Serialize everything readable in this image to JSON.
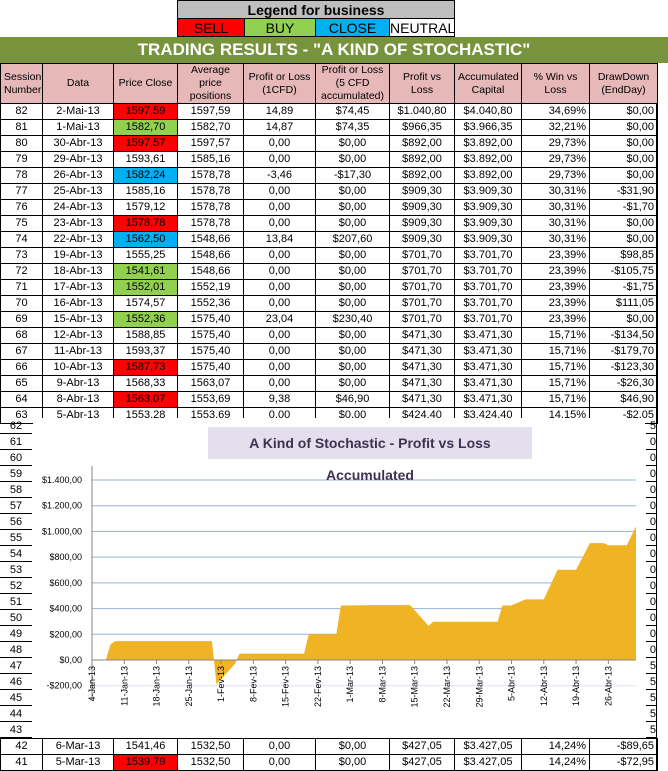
{
  "legend": {
    "title": "Legend for business",
    "items": [
      {
        "label": "SELL",
        "color": "#FF0000"
      },
      {
        "label": "BUY",
        "color": "#92D050"
      },
      {
        "label": "CLOSE",
        "color": "#00B0F0"
      },
      {
        "label": "NEUTRAL",
        "color": "#FFFFFF"
      }
    ]
  },
  "title": "TRADING RESULTS - \"A KIND OF STOCHASTIC\"",
  "headers": [
    "Session Number",
    "Data",
    "Price Close",
    "Average price positions",
    "Profit or Loss (1CFD)",
    "Profit or Loss (5 CFD accumulated)",
    "Profit vs Loss",
    "Accumulated Capital",
    "% Win vs Loss",
    "DrawDown (EndDay)"
  ],
  "rows": [
    [
      "82",
      "2-Mai-13",
      "1597,59",
      "SELL",
      "1597,59",
      "14,89",
      "$74,45",
      "$1.040,80",
      "$4.040,80",
      "34,69%",
      "$0,00"
    ],
    [
      "81",
      "1-Mai-13",
      "1582,70",
      "BUY",
      "1582,70",
      "14,87",
      "$74,35",
      "$966,35",
      "$3.966,35",
      "32,21%",
      "$0,00"
    ],
    [
      "80",
      "30-Abr-13",
      "1597,57",
      "SELL",
      "1597,57",
      "0,00",
      "$0,00",
      "$892,00",
      "$3.892,00",
      "29,73%",
      "$0,00"
    ],
    [
      "79",
      "29-Abr-13",
      "1593,61",
      "NEUTRAL",
      "1585,16",
      "0,00",
      "$0,00",
      "$892,00",
      "$3.892,00",
      "29,73%",
      "$0,00"
    ],
    [
      "78",
      "26-Abr-13",
      "1582,24",
      "CLOSE",
      "1578,78",
      "-3,46",
      "-$17,30",
      "$892,00",
      "$3.892,00",
      "29,73%",
      "$0,00"
    ],
    [
      "77",
      "25-Abr-13",
      "1585,16",
      "NEUTRAL",
      "1578,78",
      "0,00",
      "$0,00",
      "$909,30",
      "$3.909,30",
      "30,31%",
      "-$31,90"
    ],
    [
      "76",
      "24-Abr-13",
      "1579,12",
      "NEUTRAL",
      "1578,78",
      "0,00",
      "$0,00",
      "$909,30",
      "$3.909,30",
      "30,31%",
      "-$1,70"
    ],
    [
      "75",
      "23-Abr-13",
      "1578,78",
      "SELL",
      "1578,78",
      "0,00",
      "$0,00",
      "$909,30",
      "$3.909,30",
      "30,31%",
      "$0,00"
    ],
    [
      "74",
      "22-Abr-13",
      "1562,50",
      "CLOSE",
      "1548,66",
      "13,84",
      "$207,60",
      "$909,30",
      "$3.909,30",
      "30,31%",
      "$0,00"
    ],
    [
      "73",
      "19-Abr-13",
      "1555,25",
      "NEUTRAL",
      "1548,66",
      "0,00",
      "$0,00",
      "$701,70",
      "$3.701,70",
      "23,39%",
      "$98,85"
    ],
    [
      "72",
      "18-Abr-13",
      "1541,61",
      "BUY",
      "1548,66",
      "0,00",
      "$0,00",
      "$701,70",
      "$3.701,70",
      "23,39%",
      "-$105,75"
    ],
    [
      "71",
      "17-Abr-13",
      "1552,01",
      "BUY",
      "1552,19",
      "0,00",
      "$0,00",
      "$701,70",
      "$3.701,70",
      "23,39%",
      "-$1,75"
    ],
    [
      "70",
      "16-Abr-13",
      "1574,57",
      "NEUTRAL",
      "1552,36",
      "0,00",
      "$0,00",
      "$701,70",
      "$3.701,70",
      "23,39%",
      "$111,05"
    ],
    [
      "69",
      "15-Abr-13",
      "1552,36",
      "BUY",
      "1575,40",
      "23,04",
      "$230,40",
      "$701,70",
      "$3.701,70",
      "23,39%",
      "$0,00"
    ],
    [
      "68",
      "12-Abr-13",
      "1588,85",
      "NEUTRAL",
      "1575,40",
      "0,00",
      "$0,00",
      "$471,30",
      "$3.471,30",
      "15,71%",
      "-$134,50"
    ],
    [
      "67",
      "11-Abr-13",
      "1593,37",
      "NEUTRAL",
      "1575,40",
      "0,00",
      "$0,00",
      "$471,30",
      "$3.471,30",
      "15,71%",
      "-$179,70"
    ],
    [
      "66",
      "10-Abr-13",
      "1587,73",
      "SELL",
      "1575,40",
      "0,00",
      "$0,00",
      "$471,30",
      "$3.471,30",
      "15,71%",
      "-$123,30"
    ],
    [
      "65",
      "9-Abr-13",
      "1568,33",
      "NEUTRAL",
      "1563,07",
      "0,00",
      "$0,00",
      "$471,30",
      "$3.471,30",
      "15,71%",
      "-$26,30"
    ],
    [
      "64",
      "8-Abr-13",
      "1563,07",
      "SELL",
      "1553,69",
      "9,38",
      "$46,90",
      "$471,30",
      "$3.471,30",
      "15,71%",
      "$46,90"
    ],
    [
      "63",
      "5-Abr-13",
      "1553,28",
      "NEUTRAL",
      "1553,69",
      "0,00",
      "$0,00",
      "$424,40",
      "$3.424,40",
      "14,15%",
      "-$2,05"
    ]
  ],
  "bottom_rows": [
    [
      "42",
      "6-Mar-13",
      "1541,46",
      "NEUTRAL",
      "1532,50",
      "0,00",
      "$0,00",
      "$427,05",
      "$3.427,05",
      "14,24%",
      "-$89,65"
    ],
    [
      "41",
      "5-Mar-13",
      "1539,79",
      "SELL",
      "1532,50",
      "0,00",
      "$0,00",
      "$427,05",
      "$3.427,05",
      "14,24%",
      "-$72,95"
    ]
  ],
  "background_rows": [
    {
      "n": "62",
      "right": "5"
    },
    {
      "n": "61",
      "right": "0"
    },
    {
      "n": "60",
      "right": "0"
    },
    {
      "n": "59",
      "right": "0"
    },
    {
      "n": "58",
      "right": "0"
    },
    {
      "n": "57",
      "right": "0"
    },
    {
      "n": "56",
      "right": "0"
    },
    {
      "n": "55",
      "right": "0"
    },
    {
      "n": "54",
      "right": "0"
    },
    {
      "n": "53",
      "right": "0"
    },
    {
      "n": "52",
      "right": "0"
    },
    {
      "n": "51",
      "right": "0"
    },
    {
      "n": "50",
      "right": "0"
    },
    {
      "n": "49",
      "right": "0"
    },
    {
      "n": "48",
      "right": "0"
    },
    {
      "n": "47",
      "right": "5"
    },
    {
      "n": "46",
      "right": "5"
    },
    {
      "n": "45",
      "right": "5"
    },
    {
      "n": "44",
      "right": "5"
    },
    {
      "n": "43",
      "right": "5"
    }
  ],
  "chart_data": {
    "type": "area",
    "title": "A Kind of Stochastic - Profit vs Loss Accumulated",
    "xlabel": "",
    "ylabel": "",
    "fill_color": "#F0B323",
    "grid_color": "#95B3D7",
    "grid": true,
    "ylim": [
      -200,
      1400
    ],
    "xlim": [
      "2013-01-04",
      "2013-05-02"
    ],
    "yticks": [
      {
        "value": 1400,
        "label": "$1.400,00"
      },
      {
        "value": 1200,
        "label": "$1.200,00"
      },
      {
        "value": 1000,
        "label": "$1.000,00"
      },
      {
        "value": 800,
        "label": "$800,00"
      },
      {
        "value": 600,
        "label": "$600,00"
      },
      {
        "value": 400,
        "label": "$400,00"
      },
      {
        "value": 200,
        "label": "$200,00"
      },
      {
        "value": 0,
        "label": "$0,00"
      },
      {
        "value": -200,
        "label": "-$200,00"
      }
    ],
    "xticks": [
      {
        "date": "2013-01-04",
        "label": "4-Jan-13"
      },
      {
        "date": "2013-01-11",
        "label": "11-Jan-13"
      },
      {
        "date": "2013-01-18",
        "label": "18-Jan-13"
      },
      {
        "date": "2013-01-25",
        "label": "25-Jan-13"
      },
      {
        "date": "2013-02-01",
        "label": "1-Fev-13"
      },
      {
        "date": "2013-02-08",
        "label": "8-Fev-13"
      },
      {
        "date": "2013-02-15",
        "label": "15-Fev-13"
      },
      {
        "date": "2013-02-22",
        "label": "22-Fev-13"
      },
      {
        "date": "2013-03-01",
        "label": "1-Mar-13"
      },
      {
        "date": "2013-03-08",
        "label": "8-Mar-13"
      },
      {
        "date": "2013-03-15",
        "label": "15-Mar-13"
      },
      {
        "date": "2013-03-22",
        "label": "22-Mar-13"
      },
      {
        "date": "2013-03-29",
        "label": "29-Mar-13"
      },
      {
        "date": "2013-04-05",
        "label": "5-Abr-13"
      },
      {
        "date": "2013-04-12",
        "label": "12-Abr-13"
      },
      {
        "date": "2013-04-19",
        "label": "19-Abr-13"
      },
      {
        "date": "2013-04-26",
        "label": "26-Abr-13"
      }
    ],
    "points": [
      [
        "2013-01-04",
        0
      ],
      [
        "2013-01-07",
        0
      ],
      [
        "2013-01-08",
        120
      ],
      [
        "2013-01-09",
        147
      ],
      [
        "2013-01-30",
        147
      ],
      [
        "2013-01-31",
        -190
      ],
      [
        "2013-02-04",
        -30
      ],
      [
        "2013-02-05",
        50
      ],
      [
        "2013-02-19",
        50
      ],
      [
        "2013-02-20",
        200
      ],
      [
        "2013-02-26",
        200
      ],
      [
        "2013-02-27",
        424
      ],
      [
        "2013-03-06",
        427.05
      ],
      [
        "2013-03-14",
        427.05
      ],
      [
        "2013-03-18",
        265
      ],
      [
        "2013-03-19",
        297
      ],
      [
        "2013-04-02",
        297
      ],
      [
        "2013-04-03",
        424
      ],
      [
        "2013-04-05",
        424.4
      ],
      [
        "2013-04-08",
        471.3
      ],
      [
        "2013-04-12",
        471.3
      ],
      [
        "2013-04-15",
        701.7
      ],
      [
        "2013-04-19",
        701.7
      ],
      [
        "2013-04-22",
        909.3
      ],
      [
        "2013-04-25",
        909.3
      ],
      [
        "2013-04-26",
        892
      ],
      [
        "2013-04-30",
        892
      ],
      [
        "2013-05-01",
        966.35
      ],
      [
        "2013-05-02",
        1040.8
      ]
    ]
  }
}
